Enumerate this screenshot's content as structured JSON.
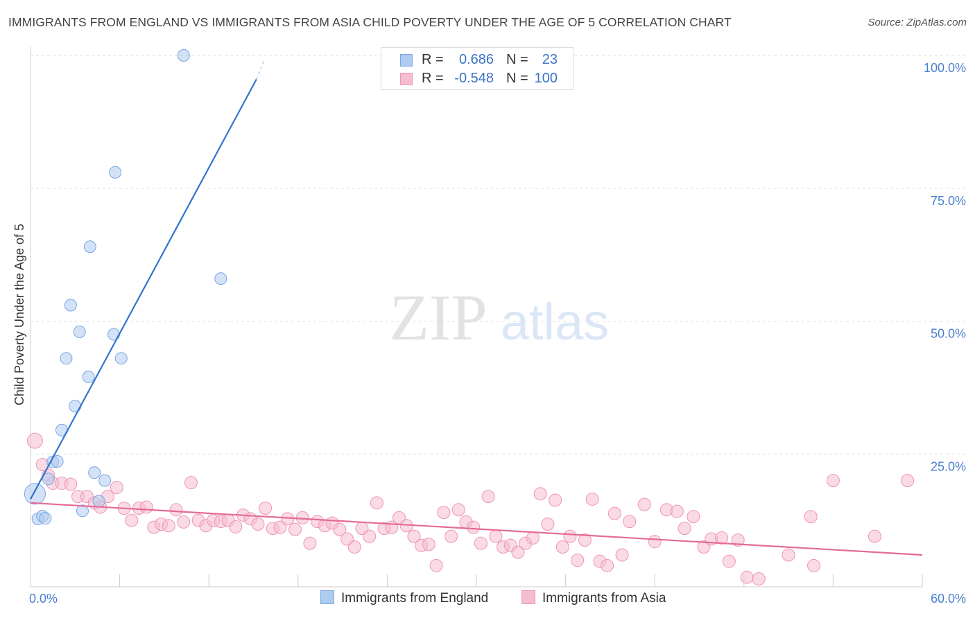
{
  "header": {
    "title": "IMMIGRANTS FROM ENGLAND VS IMMIGRANTS FROM ASIA CHILD POVERTY UNDER THE AGE OF 5 CORRELATION CHART",
    "source": "Source: ZipAtlas.com"
  },
  "watermark": {
    "zip": "ZIP",
    "atlas": "atlas"
  },
  "colors": {
    "england_fill": "#aecbf0",
    "england_stroke": "#7aa6e0",
    "england_line": "#2f74d0",
    "asia_fill": "#f6bcd0",
    "asia_stroke": "#ee94b4",
    "asia_line": "#e56a98",
    "tick_text": "#4a7fd0",
    "grid": "#dddddd"
  },
  "legend": {
    "rows": [
      {
        "r_label": "R =",
        "r_value": "0.686",
        "n_label": "N =",
        "n_value": "23"
      },
      {
        "r_label": "R =",
        "r_value": "-0.548",
        "n_label": "N =",
        "n_value": "100"
      }
    ]
  },
  "bottom_legend": {
    "england": "Immigrants from England",
    "asia": "Immigrants from Asia"
  },
  "chart_data": {
    "type": "scatter",
    "title": "IMMIGRANTS FROM ENGLAND VS IMMIGRANTS FROM ASIA CHILD POVERTY UNDER THE AGE OF 5 CORRELATION CHART",
    "xlabel": "",
    "ylabel": "Child Poverty Under the Age of 5",
    "xlim": [
      0,
      60
    ],
    "ylim": [
      0,
      100
    ],
    "x_tick_labels": [
      "0.0%",
      "60.0%"
    ],
    "y_ticks": [
      25,
      50,
      75,
      100
    ],
    "y_tick_labels": [
      "25.0%",
      "50.0%",
      "75.0%",
      "100.0%"
    ],
    "grid": true,
    "series": [
      {
        "name": "Immigrants from England",
        "r": 0.686,
        "n": 23,
        "trend": {
          "x": [
            0.0,
            15.2
          ],
          "y": [
            16.5,
            95.5
          ],
          "dashed_extension": {
            "x": [
              15.2,
              15.7
            ],
            "y": [
              95.5,
              99.0
            ]
          }
        },
        "points": [
          [
            0.3,
            17.5
          ],
          [
            0.5,
            12.8
          ],
          [
            0.8,
            13.3
          ],
          [
            1.0,
            12.9
          ],
          [
            1.2,
            20.3
          ],
          [
            1.5,
            23.5
          ],
          [
            1.8,
            23.6
          ],
          [
            2.1,
            29.5
          ],
          [
            2.4,
            43.0
          ],
          [
            2.7,
            53.0
          ],
          [
            3.0,
            34.0
          ],
          [
            3.3,
            48.0
          ],
          [
            3.5,
            14.3
          ],
          [
            3.9,
            39.5
          ],
          [
            4.0,
            64.0
          ],
          [
            4.3,
            21.5
          ],
          [
            4.6,
            16.1
          ],
          [
            5.0,
            20.0
          ],
          [
            5.6,
            47.5
          ],
          [
            5.7,
            78.0
          ],
          [
            6.1,
            43.0
          ],
          [
            10.3,
            100.0
          ],
          [
            12.8,
            58.0
          ]
        ]
      },
      {
        "name": "Immigrants from Asia",
        "r": -0.548,
        "n": 100,
        "trend": {
          "x": [
            0.0,
            60.0
          ],
          "y": [
            15.8,
            6.0
          ]
        },
        "points": [
          [
            0.3,
            27.5
          ],
          [
            0.8,
            23.0
          ],
          [
            1.2,
            21.0
          ],
          [
            1.5,
            19.5
          ],
          [
            2.1,
            19.5
          ],
          [
            2.7,
            19.3
          ],
          [
            3.2,
            17.0
          ],
          [
            3.8,
            17.0
          ],
          [
            4.3,
            15.8
          ],
          [
            4.7,
            15.0
          ],
          [
            5.2,
            17.0
          ],
          [
            5.8,
            18.7
          ],
          [
            6.3,
            14.8
          ],
          [
            6.8,
            12.5
          ],
          [
            7.3,
            14.8
          ],
          [
            7.8,
            15.0
          ],
          [
            8.3,
            11.2
          ],
          [
            8.8,
            11.8
          ],
          [
            9.3,
            11.5
          ],
          [
            9.8,
            14.5
          ],
          [
            10.3,
            12.2
          ],
          [
            10.8,
            19.6
          ],
          [
            11.3,
            12.5
          ],
          [
            11.8,
            11.5
          ],
          [
            12.3,
            12.5
          ],
          [
            12.8,
            12.3
          ],
          [
            13.3,
            12.5
          ],
          [
            13.8,
            11.3
          ],
          [
            14.3,
            13.5
          ],
          [
            14.8,
            12.8
          ],
          [
            15.3,
            11.8
          ],
          [
            15.8,
            14.8
          ],
          [
            16.3,
            11.0
          ],
          [
            16.8,
            11.2
          ],
          [
            17.3,
            12.8
          ],
          [
            17.8,
            10.8
          ],
          [
            18.3,
            13.0
          ],
          [
            18.8,
            8.2
          ],
          [
            19.3,
            12.3
          ],
          [
            19.8,
            11.5
          ],
          [
            20.3,
            12.0
          ],
          [
            20.8,
            10.8
          ],
          [
            21.3,
            9.0
          ],
          [
            21.8,
            7.5
          ],
          [
            22.3,
            11.0
          ],
          [
            22.8,
            9.5
          ],
          [
            23.3,
            15.8
          ],
          [
            23.8,
            11.0
          ],
          [
            24.3,
            11.2
          ],
          [
            24.8,
            13.0
          ],
          [
            25.3,
            11.5
          ],
          [
            25.8,
            9.5
          ],
          [
            26.3,
            7.8
          ],
          [
            26.8,
            8.0
          ],
          [
            27.3,
            4.0
          ],
          [
            27.8,
            14.0
          ],
          [
            28.3,
            9.5
          ],
          [
            28.8,
            14.5
          ],
          [
            29.3,
            12.2
          ],
          [
            29.8,
            11.2
          ],
          [
            30.3,
            8.2
          ],
          [
            30.8,
            17.0
          ],
          [
            31.3,
            9.5
          ],
          [
            31.8,
            7.5
          ],
          [
            32.3,
            7.8
          ],
          [
            32.8,
            6.5
          ],
          [
            33.3,
            8.2
          ],
          [
            33.8,
            9.2
          ],
          [
            34.3,
            17.5
          ],
          [
            34.8,
            11.8
          ],
          [
            35.3,
            16.3
          ],
          [
            35.8,
            7.5
          ],
          [
            36.3,
            9.5
          ],
          [
            36.8,
            5.0
          ],
          [
            37.3,
            8.8
          ],
          [
            37.8,
            16.5
          ],
          [
            38.3,
            4.8
          ],
          [
            38.8,
            4.0
          ],
          [
            39.3,
            13.8
          ],
          [
            39.8,
            6.0
          ],
          [
            40.3,
            12.3
          ],
          [
            41.3,
            15.5
          ],
          [
            42.0,
            8.5
          ],
          [
            42.8,
            14.5
          ],
          [
            43.5,
            14.2
          ],
          [
            44.0,
            11.0
          ],
          [
            44.6,
            13.2
          ],
          [
            45.3,
            7.5
          ],
          [
            45.8,
            9.0
          ],
          [
            46.5,
            9.2
          ],
          [
            47.0,
            4.8
          ],
          [
            47.6,
            8.8
          ],
          [
            48.2,
            1.8
          ],
          [
            49.0,
            1.5
          ],
          [
            51.0,
            6.0
          ],
          [
            52.5,
            13.2
          ],
          [
            52.7,
            4.0
          ],
          [
            54.0,
            20.0
          ],
          [
            56.8,
            9.5
          ],
          [
            59.0,
            20.0
          ]
        ]
      }
    ]
  }
}
